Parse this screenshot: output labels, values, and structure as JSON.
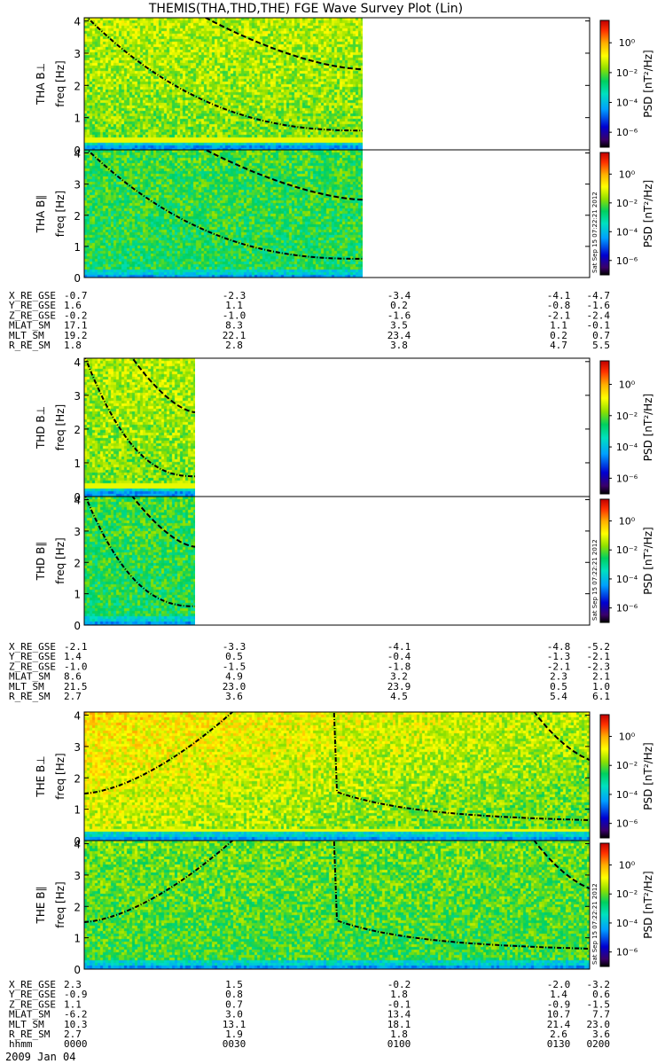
{
  "title": "THEMIS(THA,THD,THE) FGE Wave Survey Plot (Lin)",
  "y_axis_label": "freq [Hz]",
  "colorbar_label": "PSD [nT²/Hz]",
  "colorbar_ticks": [
    "10⁰",
    "10⁻²",
    "10⁻⁴",
    "10⁻⁶"
  ],
  "colorbar_log_range": [
    -7,
    1.5
  ],
  "colorbar_tick_exponents": [
    0,
    -2,
    -4,
    -6
  ],
  "stamp": "Sat Sep 15 07:22:21 2012",
  "chart_data": [
    {
      "type": "heatmap",
      "panel": "THA B⊥",
      "probe": "THA",
      "ylabel": "THA B⊥",
      "ylim": [
        0,
        4.1
      ],
      "y_ticks": [
        0,
        1,
        2,
        3,
        4
      ],
      "x_data_fraction": 0.55,
      "ephemeris_group": 0
    },
    {
      "type": "heatmap",
      "panel": "THA B∥",
      "probe": "THA",
      "ylabel": "THA B∥",
      "ylim": [
        0,
        4.1
      ],
      "y_ticks": [
        0,
        1,
        2,
        3,
        4
      ],
      "x_data_fraction": 0.55,
      "ephemeris_group": 0
    },
    {
      "type": "heatmap",
      "panel": "THD B⊥",
      "probe": "THD",
      "ylabel": "THD B⊥",
      "ylim": [
        0,
        4.1
      ],
      "y_ticks": [
        0,
        1,
        2,
        3,
        4
      ],
      "x_data_fraction": 0.22,
      "ephemeris_group": 1
    },
    {
      "type": "heatmap",
      "panel": "THD B∥",
      "probe": "THD",
      "ylabel": "THD B∥",
      "ylim": [
        0,
        4.1
      ],
      "y_ticks": [
        0,
        1,
        2,
        3,
        4
      ],
      "x_data_fraction": 0.22,
      "ephemeris_group": 1
    },
    {
      "type": "heatmap",
      "panel": "THE B⊥",
      "probe": "THE",
      "ylabel": "THE B⊥",
      "ylim": [
        0,
        4.1
      ],
      "y_ticks": [
        0,
        1,
        2,
        3,
        4
      ],
      "x_data_fraction": 1.0,
      "ephemeris_group": 2
    },
    {
      "type": "heatmap",
      "panel": "THE B∥",
      "probe": "THE",
      "ylabel": "THE B∥",
      "ylim": [
        0,
        4.1
      ],
      "y_ticks": [
        0,
        1,
        2,
        3,
        4
      ],
      "x_data_fraction": 1.0,
      "ephemeris_group": 2
    }
  ],
  "ephemeris": [
    {
      "rows": [
        {
          "label": "X_RE_GSE",
          "values": [
            "-0.7",
            "-2.3",
            "-3.4",
            "-4.1",
            "-4.7"
          ]
        },
        {
          "label": "Y_RE_GSE",
          "values": [
            "1.6",
            "1.1",
            "0.2",
            "-0.8",
            "-1.6"
          ]
        },
        {
          "label": "Z_RE_GSE",
          "values": [
            "-0.2",
            "-1.0",
            "-1.6",
            "-2.1",
            "-2.4"
          ]
        },
        {
          "label": "MLAT_SM",
          "values": [
            "17.1",
            "8.3",
            "3.5",
            "1.1",
            "-0.1"
          ]
        },
        {
          "label": "MLT_SM",
          "values": [
            "19.2",
            "22.1",
            "23.4",
            "0.2",
            "0.7"
          ]
        },
        {
          "label": "R_RE_SM",
          "values": [
            "1.8",
            "2.8",
            "3.8",
            "4.7",
            "5.5"
          ]
        }
      ]
    },
    {
      "rows": [
        {
          "label": "X_RE_GSE",
          "values": [
            "-2.1",
            "-3.3",
            "-4.1",
            "-4.8",
            "-5.2"
          ]
        },
        {
          "label": "Y_RE_GSE",
          "values": [
            "1.4",
            "0.5",
            "-0.4",
            "-1.3",
            "-2.1"
          ]
        },
        {
          "label": "Z_RE_GSE",
          "values": [
            "-1.0",
            "-1.5",
            "-1.8",
            "-2.1",
            "-2.3"
          ]
        },
        {
          "label": "MLAT_SM",
          "values": [
            "8.6",
            "4.9",
            "3.2",
            "2.3",
            "2.1"
          ]
        },
        {
          "label": "MLT_SM",
          "values": [
            "21.5",
            "23.0",
            "23.9",
            "0.5",
            "1.0"
          ]
        },
        {
          "label": "R_RE_SM",
          "values": [
            "2.7",
            "3.6",
            "4.5",
            "5.4",
            "6.1"
          ]
        }
      ]
    },
    {
      "rows": [
        {
          "label": "X_RE_GSE",
          "values": [
            "2.3",
            "1.5",
            "-0.2",
            "-2.0",
            "-3.2"
          ]
        },
        {
          "label": "Y_RE_GSE",
          "values": [
            "-0.9",
            "0.8",
            "1.8",
            "1.4",
            "0.6"
          ]
        },
        {
          "label": "Z_RE_GSE",
          "values": [
            "1.1",
            "0.7",
            "-0.1",
            "-0.9",
            "-1.5"
          ]
        },
        {
          "label": "MLAT_SM",
          "values": [
            "-6.2",
            "3.0",
            "13.4",
            "10.7",
            "7.7"
          ]
        },
        {
          "label": "MLT_SM",
          "values": [
            "10.3",
            "13.1",
            "18.1",
            "21.4",
            "23.0"
          ]
        },
        {
          "label": "R_RE_SM",
          "values": [
            "2.7",
            "1.9",
            "1.8",
            "2.6",
            "3.6"
          ]
        },
        {
          "label": "hhmm",
          "values": [
            "0000",
            "0030",
            "0100",
            "0130",
            "0200"
          ]
        }
      ]
    }
  ],
  "date_label": "2009 Jan 04"
}
